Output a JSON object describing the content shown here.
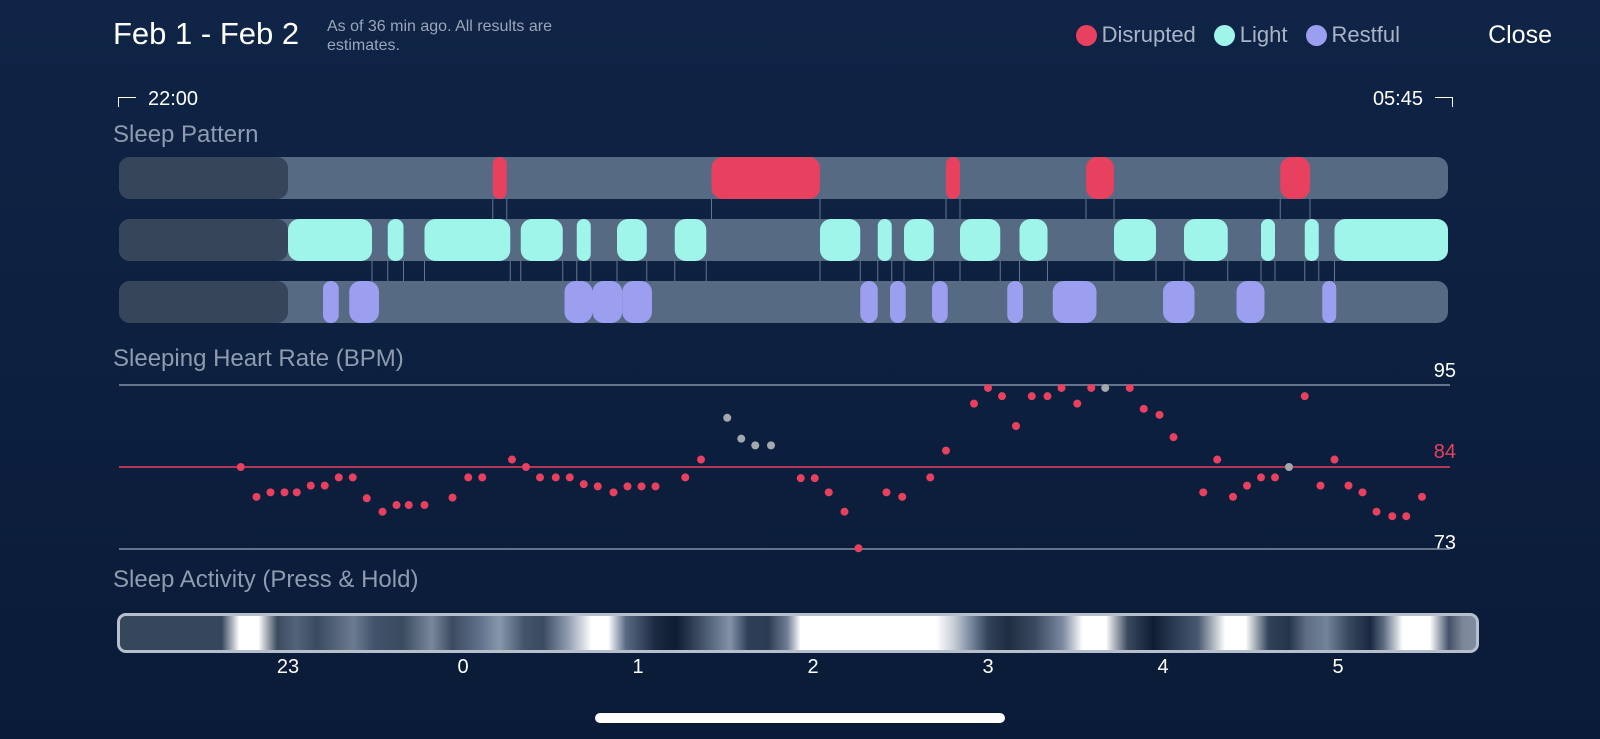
{
  "header": {
    "title": "Feb 1 - Feb 2",
    "subtitle": "As of 36 min ago. All results are estimates.",
    "close_label": "Close"
  },
  "legend": [
    {
      "label": "Disrupted",
      "color": "#e8405f"
    },
    {
      "label": "Light",
      "color": "#9ff5e9"
    },
    {
      "label": "Restful",
      "color": "#9c9ff0"
    }
  ],
  "time_range": {
    "start": "22:00",
    "end": "05:45"
  },
  "sleep_pattern": {
    "title": "Sleep Pattern",
    "track_color": "#566a84",
    "lead_color": "#36455a",
    "axis_range_hours": [
      -1.6,
      5.6
    ],
    "no_data_until": -1.0,
    "disrupted": [
      [
        0.17,
        0.25
      ],
      [
        1.42,
        2.04
      ],
      [
        2.76,
        2.84
      ],
      [
        3.56,
        3.72
      ],
      [
        4.67,
        4.84
      ]
    ],
    "light": [
      [
        -1.0,
        -0.52
      ],
      [
        -0.43,
        -0.34
      ],
      [
        -0.22,
        0.27
      ],
      [
        0.33,
        0.57
      ],
      [
        0.65,
        0.73
      ],
      [
        0.88,
        1.05
      ],
      [
        1.21,
        1.39
      ],
      [
        2.04,
        2.27
      ],
      [
        2.37,
        2.45
      ],
      [
        2.52,
        2.69
      ],
      [
        2.84,
        3.07
      ],
      [
        3.18,
        3.34
      ],
      [
        3.72,
        3.96
      ],
      [
        4.12,
        4.37
      ],
      [
        4.56,
        4.64
      ],
      [
        4.81,
        4.89
      ],
      [
        4.98,
        5.65
      ]
    ],
    "restful": [
      [
        -0.8,
        -0.71
      ],
      [
        -0.65,
        -0.48
      ],
      [
        0.58,
        0.74
      ],
      [
        0.74,
        0.91
      ],
      [
        0.91,
        1.08
      ],
      [
        2.27,
        2.37
      ],
      [
        2.44,
        2.53
      ],
      [
        2.68,
        2.77
      ],
      [
        3.11,
        3.2
      ],
      [
        3.37,
        3.62
      ],
      [
        4.0,
        4.18
      ],
      [
        4.42,
        4.58
      ],
      [
        4.91,
        4.99
      ]
    ]
  },
  "heart_rate": {
    "title": "Sleeping Heart Rate (BPM)",
    "max_label": "95",
    "avg_label": "84",
    "min_label": "73",
    "y_range": [
      73,
      95
    ],
    "avg": 84,
    "colors": {
      "normal": "#e8405f",
      "estimated": "#a3a7ae"
    },
    "points": [
      [
        -1.27,
        84
      ],
      [
        -1.18,
        80
      ],
      [
        -1.1,
        80.6
      ],
      [
        -1.02,
        80.6
      ],
      [
        -0.95,
        80.6
      ],
      [
        -0.87,
        81.5
      ],
      [
        -0.79,
        81.5
      ],
      [
        -0.71,
        82.6
      ],
      [
        -0.63,
        82.6
      ],
      [
        -0.55,
        79.8
      ],
      [
        -0.46,
        78
      ],
      [
        -0.38,
        78.9
      ],
      [
        -0.31,
        78.9
      ],
      [
        -0.22,
        78.9
      ],
      [
        -0.06,
        79.9
      ],
      [
        0.03,
        82.6
      ],
      [
        0.11,
        82.6
      ],
      [
        0.28,
        85
      ],
      [
        0.36,
        84
      ],
      [
        0.44,
        82.6
      ],
      [
        0.53,
        82.6
      ],
      [
        0.61,
        82.6
      ],
      [
        0.69,
        81.7
      ],
      [
        0.77,
        81.4
      ],
      [
        0.86,
        80.6
      ],
      [
        0.94,
        81.4
      ],
      [
        1.02,
        81.4
      ],
      [
        1.1,
        81.4
      ],
      [
        1.27,
        82.6
      ],
      [
        1.36,
        85
      ]
    ],
    "points_estimated": [
      [
        1.51,
        90.6
      ],
      [
        1.59,
        87.8
      ],
      [
        1.67,
        86.9
      ],
      [
        1.76,
        86.9
      ]
    ],
    "points2": [
      [
        1.93,
        82.5
      ],
      [
        2.01,
        82.5
      ],
      [
        2.09,
        80.6
      ],
      [
        2.18,
        78
      ],
      [
        2.26,
        73.1
      ],
      [
        2.42,
        80.6
      ],
      [
        2.51,
        80
      ],
      [
        2.67,
        82.6
      ],
      [
        2.76,
        86.2
      ],
      [
        2.92,
        92.5
      ],
      [
        3.0,
        94.6
      ],
      [
        3.08,
        93.5
      ],
      [
        3.16,
        89.5
      ],
      [
        3.25,
        93.5
      ],
      [
        3.34,
        93.5
      ],
      [
        3.42,
        94.6
      ],
      [
        3.51,
        92.5
      ],
      [
        3.59,
        94.6
      ],
      [
        3.81,
        94.6
      ],
      [
        3.89,
        91.8
      ],
      [
        3.98,
        91
      ],
      [
        4.06,
        88
      ],
      [
        4.23,
        80.6
      ],
      [
        4.31,
        85
      ],
      [
        4.4,
        80
      ],
      [
        4.48,
        81.5
      ],
      [
        4.56,
        82.6
      ],
      [
        4.64,
        82.6
      ],
      [
        4.81,
        93.5
      ],
      [
        4.9,
        81.5
      ],
      [
        4.98,
        85
      ],
      [
        5.06,
        81.5
      ],
      [
        5.14,
        80.6
      ],
      [
        5.22,
        78
      ],
      [
        5.31,
        77.4
      ],
      [
        5.39,
        77.4
      ],
      [
        5.48,
        80
      ]
    ],
    "points2_estimated": [
      [
        3.67,
        94.6
      ],
      [
        4.72,
        84
      ]
    ]
  },
  "sleep_activity": {
    "title": "Sleep Activity (Press & Hold)",
    "ticks": [
      {
        "label": "23",
        "hour": -1
      },
      {
        "label": "0",
        "hour": 0
      },
      {
        "label": "1",
        "hour": 1
      },
      {
        "label": "2",
        "hour": 2
      },
      {
        "label": "3",
        "hour": 3
      },
      {
        "label": "4",
        "hour": 4
      },
      {
        "label": "5",
        "hour": 5
      }
    ]
  }
}
